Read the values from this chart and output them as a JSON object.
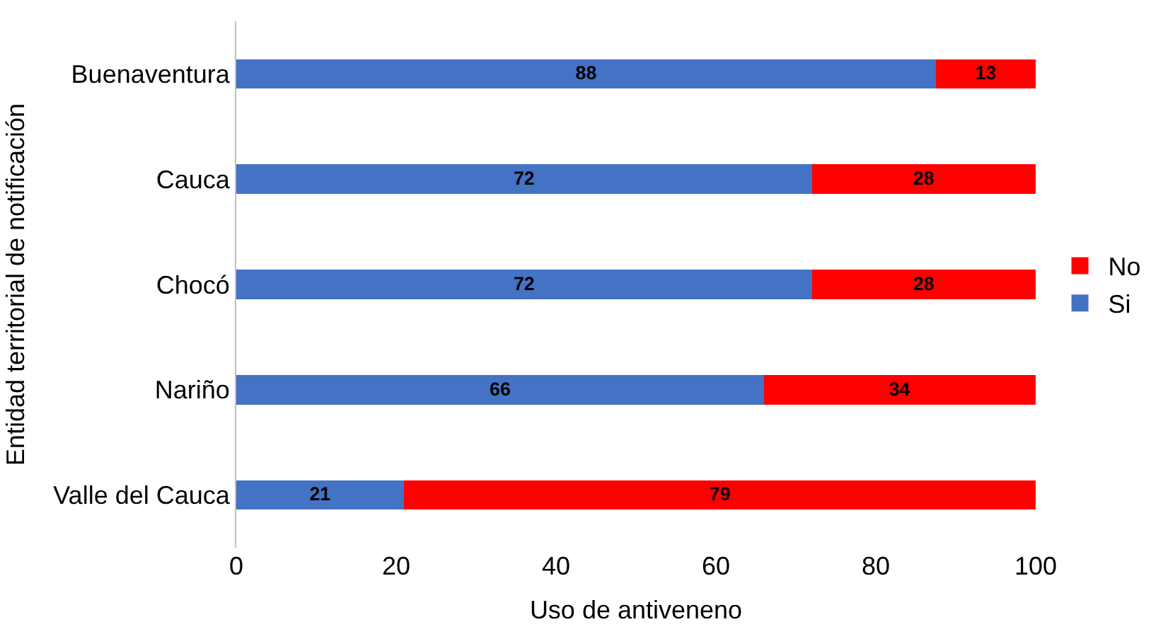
{
  "chart_data": {
    "type": "bar",
    "orientation": "horizontal",
    "stacked": true,
    "xlabel": "Uso de antiveneno",
    "ylabel": "Entidad territorial de notificación",
    "categories": [
      "Buenaventura",
      "Cauca",
      "Chocó",
      "Nariño",
      "Valle del Cauca"
    ],
    "series": [
      {
        "name": "Si",
        "color": "#4472c4",
        "values": [
          87.5,
          72,
          72,
          66,
          21
        ],
        "value_labels": [
          "88",
          "72",
          "72",
          "66",
          "21"
        ]
      },
      {
        "name": "No",
        "color": "#ff0000",
        "values": [
          12.5,
          28,
          28,
          34,
          79
        ],
        "value_labels": [
          "13",
          "28",
          "28",
          "34",
          "79"
        ]
      }
    ],
    "xlim": [
      0,
      100
    ],
    "xticks": [
      0,
      20,
      40,
      60,
      80,
      100
    ],
    "grid": false,
    "legend": "right"
  }
}
